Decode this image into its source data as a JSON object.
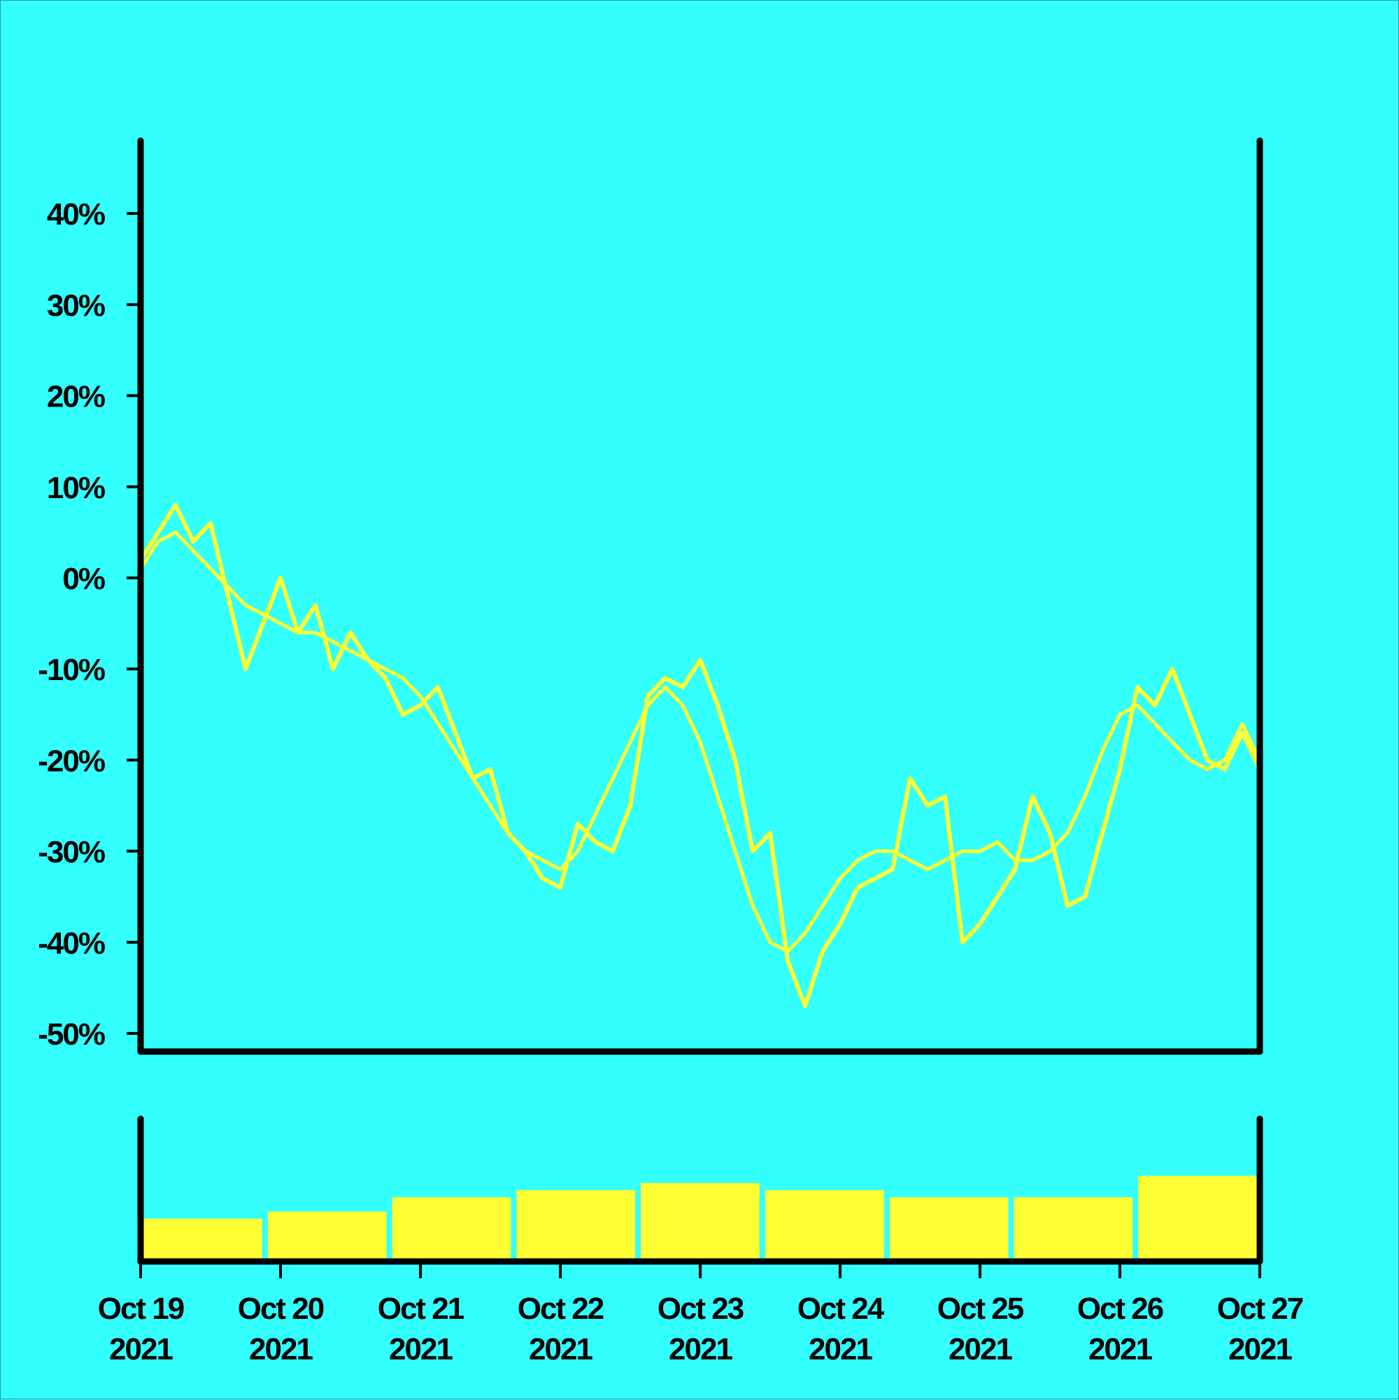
{
  "chart_data": {
    "type": "line",
    "title": "",
    "xlabel": "",
    "ylabel": "",
    "x_range": [
      "2021-10-19",
      "2021-10-27"
    ],
    "x_ticks": [
      {
        "date": "2021-10-19",
        "line1": "Oct 19",
        "line2": "2021"
      },
      {
        "date": "2021-10-20",
        "line1": "Oct 20",
        "line2": "2021"
      },
      {
        "date": "2021-10-21",
        "line1": "Oct 21",
        "line2": "2021"
      },
      {
        "date": "2021-10-22",
        "line1": "Oct 22",
        "line2": "2021"
      },
      {
        "date": "2021-10-23",
        "line1": "Oct 23",
        "line2": "2021"
      },
      {
        "date": "2021-10-24",
        "line1": "Oct 24",
        "line2": "2021"
      },
      {
        "date": "2021-10-25",
        "line1": "Oct 25",
        "line2": "2021"
      },
      {
        "date": "2021-10-26",
        "line1": "Oct 26",
        "line2": "2021"
      },
      {
        "date": "2021-10-27",
        "line1": "Oct 27",
        "line2": "2021"
      }
    ],
    "y_ticks": [
      {
        "value": 40,
        "label": "40%"
      },
      {
        "value": 30,
        "label": "30%"
      },
      {
        "value": 20,
        "label": "20%"
      },
      {
        "value": 10,
        "label": "10%"
      },
      {
        "value": 0,
        "label": "0%"
      },
      {
        "value": -10,
        "label": "-10%"
      },
      {
        "value": -20,
        "label": "-20%"
      },
      {
        "value": -30,
        "label": "-30%"
      },
      {
        "value": -40,
        "label": "-40%"
      },
      {
        "value": -50,
        "label": "-50%"
      }
    ],
    "ylim": [
      -52,
      48
    ],
    "grid": false,
    "legend": "none",
    "series": [
      {
        "role": "price",
        "color": "#ffff33",
        "x": [
          "2021-10-19 00:00",
          "2021-10-19 03:00",
          "2021-10-19 06:00",
          "2021-10-19 09:00",
          "2021-10-19 12:00",
          "2021-10-19 15:00",
          "2021-10-19 18:00",
          "2021-10-19 21:00",
          "2021-10-20 00:00",
          "2021-10-20 03:00",
          "2021-10-20 06:00",
          "2021-10-20 09:00",
          "2021-10-20 12:00",
          "2021-10-20 15:00",
          "2021-10-20 18:00",
          "2021-10-20 21:00",
          "2021-10-21 00:00",
          "2021-10-21 03:00",
          "2021-10-21 06:00",
          "2021-10-21 09:00",
          "2021-10-21 12:00",
          "2021-10-21 15:00",
          "2021-10-21 18:00",
          "2021-10-21 21:00",
          "2021-10-22 00:00",
          "2021-10-22 03:00",
          "2021-10-22 06:00",
          "2021-10-22 09:00",
          "2021-10-22 12:00",
          "2021-10-22 15:00",
          "2021-10-22 18:00",
          "2021-10-22 21:00",
          "2021-10-23 00:00",
          "2021-10-23 03:00",
          "2021-10-23 06:00",
          "2021-10-23 09:00",
          "2021-10-23 12:00",
          "2021-10-23 15:00",
          "2021-10-23 18:00",
          "2021-10-23 21:00",
          "2021-10-24 00:00",
          "2021-10-24 03:00",
          "2021-10-24 06:00",
          "2021-10-24 09:00",
          "2021-10-24 12:00",
          "2021-10-24 15:00",
          "2021-10-24 18:00",
          "2021-10-24 21:00",
          "2021-10-25 00:00",
          "2021-10-25 03:00",
          "2021-10-25 06:00",
          "2021-10-25 09:00",
          "2021-10-25 12:00",
          "2021-10-25 15:00",
          "2021-10-25 18:00",
          "2021-10-25 21:00",
          "2021-10-26 00:00",
          "2021-10-26 03:00",
          "2021-10-26 06:00",
          "2021-10-26 09:00",
          "2021-10-26 12:00",
          "2021-10-26 15:00",
          "2021-10-26 18:00",
          "2021-10-26 21:00",
          "2021-10-27 00:00"
        ],
        "values": [
          2,
          5,
          8,
          4,
          6,
          -2,
          -10,
          -5,
          0,
          -6,
          -3,
          -10,
          -6,
          -9,
          -11,
          -15,
          -14,
          -12,
          -17,
          -22,
          -21,
          -28,
          -30,
          -33,
          -34,
          -27,
          -29,
          -30,
          -25,
          -13,
          -11,
          -12,
          -9,
          -14,
          -20,
          -30,
          -28,
          -42,
          -47,
          -41,
          -38,
          -34,
          -33,
          -32,
          -22,
          -25,
          -24,
          -40,
          -38,
          -35,
          -32,
          -24,
          -28,
          -36,
          -35,
          -28,
          -21,
          -12,
          -14,
          -10,
          -15,
          -20,
          -21,
          -17,
          -21
        ]
      },
      {
        "role": "moving-average",
        "color": "#ffff33",
        "x": [
          "2021-10-19 00:00",
          "2021-10-19 03:00",
          "2021-10-19 06:00",
          "2021-10-19 09:00",
          "2021-10-19 12:00",
          "2021-10-19 15:00",
          "2021-10-19 18:00",
          "2021-10-19 21:00",
          "2021-10-20 00:00",
          "2021-10-20 03:00",
          "2021-10-20 06:00",
          "2021-10-20 09:00",
          "2021-10-20 12:00",
          "2021-10-20 15:00",
          "2021-10-20 18:00",
          "2021-10-20 21:00",
          "2021-10-21 00:00",
          "2021-10-21 03:00",
          "2021-10-21 06:00",
          "2021-10-21 09:00",
          "2021-10-21 12:00",
          "2021-10-21 15:00",
          "2021-10-21 18:00",
          "2021-10-21 21:00",
          "2021-10-22 00:00",
          "2021-10-22 03:00",
          "2021-10-22 06:00",
          "2021-10-22 09:00",
          "2021-10-22 12:00",
          "2021-10-22 15:00",
          "2021-10-22 18:00",
          "2021-10-22 21:00",
          "2021-10-23 00:00",
          "2021-10-23 03:00",
          "2021-10-23 06:00",
          "2021-10-23 09:00",
          "2021-10-23 12:00",
          "2021-10-23 15:00",
          "2021-10-23 18:00",
          "2021-10-23 21:00",
          "2021-10-24 00:00",
          "2021-10-24 03:00",
          "2021-10-24 06:00",
          "2021-10-24 09:00",
          "2021-10-24 12:00",
          "2021-10-24 15:00",
          "2021-10-24 18:00",
          "2021-10-24 21:00",
          "2021-10-25 00:00",
          "2021-10-25 03:00",
          "2021-10-25 06:00",
          "2021-10-25 09:00",
          "2021-10-25 12:00",
          "2021-10-25 15:00",
          "2021-10-25 18:00",
          "2021-10-25 21:00",
          "2021-10-26 00:00",
          "2021-10-26 03:00",
          "2021-10-26 06:00",
          "2021-10-26 09:00",
          "2021-10-26 12:00",
          "2021-10-26 15:00",
          "2021-10-26 18:00",
          "2021-10-26 21:00",
          "2021-10-27 00:00"
        ],
        "values": [
          1,
          4,
          5,
          3,
          1,
          -1,
          -3,
          -4,
          -5,
          -6,
          -6,
          -7,
          -8,
          -9,
          -10,
          -11,
          -13,
          -16,
          -19,
          -22,
          -25,
          -28,
          -30,
          -31,
          -32,
          -30,
          -26,
          -22,
          -18,
          -14,
          -12,
          -14,
          -18,
          -24,
          -30,
          -36,
          -40,
          -41,
          -39,
          -36,
          -33,
          -31,
          -30,
          -30,
          -31,
          -32,
          -31,
          -30,
          -30,
          -29,
          -31,
          -31,
          -30,
          -28,
          -24,
          -19,
          -15,
          -14,
          -16,
          -18,
          -20,
          -21,
          -20,
          -16,
          -20
        ]
      }
    ],
    "volume": {
      "type": "bar",
      "color": "#ffff33",
      "x": [
        "2021-10-19",
        "2021-10-20",
        "2021-10-21",
        "2021-10-22",
        "2021-10-23",
        "2021-10-24",
        "2021-10-25",
        "2021-10-26",
        "2021-10-27"
      ],
      "values": [
        0.3,
        0.35,
        0.45,
        0.5,
        0.55,
        0.5,
        0.45,
        0.45,
        0.6
      ]
    }
  }
}
